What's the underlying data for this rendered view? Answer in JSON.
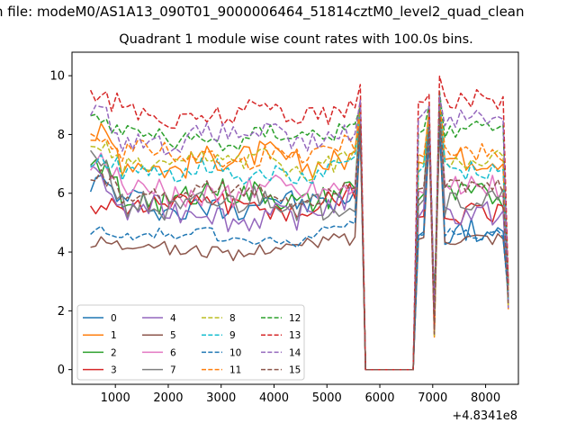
{
  "suptitle": "n file: modeM0/AS1A13_090T01_9000006464_51814cztM0_level2_quad_clean",
  "chart_data": {
    "type": "line",
    "title": "Quadrant 1 module wise count rates with 100.0s bins.",
    "xlabel": "",
    "ylabel": "",
    "x_offset_label": "+4.8341e8",
    "xlim": [
      180,
      8620
    ],
    "ylim": [
      -0.5,
      10.8
    ],
    "x_ticks": [
      1000,
      2000,
      3000,
      4000,
      5000,
      6000,
      7000,
      8000
    ],
    "y_ticks": [
      0,
      2,
      4,
      6,
      8,
      10
    ],
    "grid": false,
    "legend_position": "lower-left",
    "legend_columns": 4,
    "series": [
      {
        "name": "0",
        "color": "#1f77b4",
        "dash": "solid",
        "base": 5.6,
        "amp": 0.45,
        "start": 6.2,
        "peak": 9.0,
        "post": 4.7
      },
      {
        "name": "1",
        "color": "#ff7f0e",
        "dash": "solid",
        "base": 7.1,
        "amp": 0.45,
        "start": 7.8,
        "peak": 9.0,
        "post": 7.2
      },
      {
        "name": "2",
        "color": "#2ca02c",
        "dash": "solid",
        "base": 5.9,
        "amp": 0.45,
        "start": 6.8,
        "peak": 8.8,
        "post": 5.9
      },
      {
        "name": "3",
        "color": "#d62728",
        "dash": "solid",
        "base": 5.6,
        "amp": 0.4,
        "start": 5.3,
        "peak": 8.7,
        "post": 5.3
      },
      {
        "name": "4",
        "color": "#9467bd",
        "dash": "solid",
        "base": 5.3,
        "amp": 0.45,
        "start": 6.5,
        "peak": 8.5,
        "post": 5.3
      },
      {
        "name": "5",
        "color": "#8c564b",
        "dash": "solid",
        "base": 4.1,
        "amp": 0.25,
        "start": 4.2,
        "peak": 8.0,
        "post": 4.5
      },
      {
        "name": "6",
        "color": "#e377c2",
        "dash": "solid",
        "base": 6.1,
        "amp": 0.45,
        "start": 6.7,
        "peak": 8.3,
        "post": 6.2
      },
      {
        "name": "7",
        "color": "#7f7f7f",
        "dash": "solid",
        "base": 5.6,
        "amp": 0.5,
        "start": 7.2,
        "peak": 8.6,
        "post": 5.7
      },
      {
        "name": "8",
        "color": "#bcbd22",
        "dash": "dashed",
        "base": 7.0,
        "amp": 0.35,
        "start": 7.3,
        "peak": 8.8,
        "post": 7.1
      },
      {
        "name": "9",
        "color": "#17becf",
        "dash": "dashed",
        "base": 6.7,
        "amp": 0.35,
        "start": 7.0,
        "peak": 8.8,
        "post": 6.8
      },
      {
        "name": "10",
        "color": "#1f77b4",
        "dash": "dashed",
        "base": 4.5,
        "amp": 0.2,
        "start": 4.6,
        "peak": 8.2,
        "post": 4.6
      },
      {
        "name": "11",
        "color": "#ff7f0e",
        "dash": "dashed",
        "base": 7.3,
        "amp": 0.35,
        "start": 7.9,
        "peak": 8.9,
        "post": 7.4
      },
      {
        "name": "12",
        "color": "#2ca02c",
        "dash": "dashed",
        "base": 7.9,
        "amp": 0.35,
        "start": 8.4,
        "peak": 9.2,
        "post": 8.1
      },
      {
        "name": "13",
        "color": "#d62728",
        "dash": "dashed",
        "base": 8.7,
        "amp": 0.4,
        "start": 9.1,
        "peak": 9.6,
        "post": 9.2
      },
      {
        "name": "14",
        "color": "#9467bd",
        "dash": "dashed",
        "base": 7.9,
        "amp": 0.35,
        "start": 8.7,
        "peak": 9.2,
        "post": 8.6
      },
      {
        "name": "15",
        "color": "#8c564b",
        "dash": "dashed",
        "base": 6.0,
        "amp": 0.3,
        "start": 6.4,
        "peak": 8.5,
        "post": 6.2
      }
    ]
  }
}
